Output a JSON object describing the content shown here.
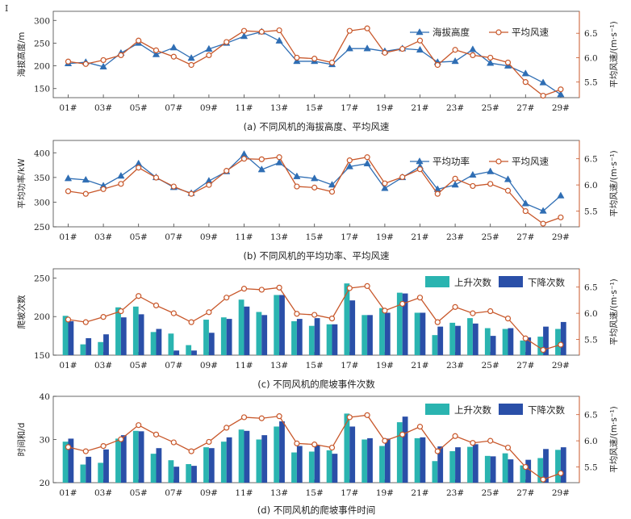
{
  "figure_label": "I",
  "colors": {
    "blue_line": "#2f6eb4",
    "orange_line": "#c8572a",
    "bar_up": "#2ab4b0",
    "bar_down": "#2a4fa8",
    "axis": "#444444",
    "right_axis": "#c8572a"
  },
  "x_tick_labels": [
    "01#",
    "03#",
    "05#",
    "07#",
    "09#",
    "11#",
    "13#",
    "15#",
    "17#",
    "19#",
    "21#",
    "23#",
    "25#",
    "27#",
    "29#"
  ],
  "chart_data": [
    {
      "type": "line",
      "caption": "(a) 不同风机的海拔高度、平均风速",
      "ylabel_left": "海拔高度/m",
      "ylabel_right": "平均风速/(m·s⁻¹)",
      "yticks_left": [
        "150",
        "200",
        "250",
        "300"
      ],
      "yticks_right": [
        "5.5",
        "6.0",
        "6.5"
      ],
      "ylim_left": [
        130,
        320
      ],
      "ylim_right": [
        5.18,
        6.95
      ],
      "x": [
        1,
        2,
        3,
        4,
        5,
        6,
        7,
        8,
        9,
        10,
        11,
        12,
        13,
        14,
        15,
        16,
        17,
        18,
        19,
        20,
        21,
        22,
        23,
        24,
        25,
        26,
        27,
        28,
        29
      ],
      "series": [
        {
          "name": "海拔高度",
          "axis": "left",
          "marker": "triangle",
          "values": [
            205,
            208,
            198,
            228,
            250,
            225,
            240,
            217,
            237,
            250,
            265,
            275,
            255,
            210,
            210,
            203,
            238,
            238,
            232,
            238,
            235,
            208,
            210,
            236,
            206,
            200,
            183,
            163,
            137
          ]
        },
        {
          "name": "平均风速",
          "axis": "right",
          "marker": "circle",
          "values": [
            5.92,
            5.87,
            5.95,
            6.05,
            6.35,
            6.15,
            6.02,
            5.85,
            6.05,
            6.32,
            6.55,
            6.53,
            6.56,
            6.0,
            5.98,
            5.9,
            6.55,
            6.6,
            6.1,
            6.18,
            6.35,
            5.85,
            6.16,
            6.05,
            6.0,
            5.9,
            5.5,
            5.22,
            5.35
          ]
        }
      ]
    },
    {
      "type": "line",
      "caption": "(b) 不同风机的平均功率、平均风速",
      "ylabel_left": "平均功率/kW",
      "ylabel_right": "平均风速/(m·s⁻¹)",
      "yticks_left": [
        "250",
        "300",
        "350",
        "400"
      ],
      "yticks_right": [
        "5.5",
        "6.0",
        "6.5"
      ],
      "ylim_left": [
        250,
        425
      ],
      "ylim_right": [
        5.2,
        6.85
      ],
      "x": [
        1,
        2,
        3,
        4,
        5,
        6,
        7,
        8,
        9,
        10,
        11,
        12,
        13,
        14,
        15,
        16,
        17,
        18,
        19,
        20,
        21,
        22,
        23,
        24,
        25,
        26,
        27,
        28,
        29
      ],
      "series": [
        {
          "name": "平均功率",
          "axis": "left",
          "marker": "triangle",
          "values": [
            348,
            345,
            333,
            353,
            378,
            350,
            330,
            318,
            343,
            362,
            397,
            366,
            380,
            352,
            348,
            335,
            372,
            378,
            328,
            350,
            372,
            326,
            335,
            355,
            362,
            346,
            297,
            282,
            313
          ]
        },
        {
          "name": "平均风速",
          "axis": "right",
          "marker": "circle",
          "values": [
            5.88,
            5.83,
            5.92,
            6.02,
            6.33,
            6.14,
            5.97,
            5.83,
            6.0,
            6.27,
            6.5,
            6.49,
            6.53,
            5.97,
            5.95,
            5.87,
            6.47,
            6.53,
            6.03,
            6.15,
            6.3,
            5.83,
            6.12,
            5.98,
            6.02,
            5.89,
            5.5,
            5.26,
            5.38
          ]
        }
      ]
    },
    {
      "type": "bar+line",
      "caption": "(c) 不同风机的爬坡事件次数",
      "ylabel_left": "爬坡次数",
      "ylabel_right": "平均风速/(m·s⁻¹)",
      "yticks_left": [
        "150",
        "200",
        "250"
      ],
      "yticks_right": [
        "5.5",
        "6.0",
        "6.5"
      ],
      "ylim_left": [
        150,
        262
      ],
      "ylim_right": [
        5.2,
        6.85
      ],
      "x": [
        1,
        2,
        3,
        4,
        5,
        6,
        7,
        8,
        9,
        10,
        11,
        12,
        13,
        14,
        15,
        16,
        17,
        18,
        19,
        20,
        21,
        22,
        23,
        24,
        25,
        26,
        27,
        28,
        29
      ],
      "series": [
        {
          "name": "上升次数",
          "kind": "bar",
          "values": [
            201,
            164,
            167,
            212,
            213,
            180,
            178,
            163,
            196,
            199,
            222,
            206,
            228,
            194,
            188,
            190,
            243,
            202,
            211,
            231,
            205,
            176,
            192,
            198,
            185,
            184,
            169,
            174,
            184
          ]
        },
        {
          "name": "下降次数",
          "kind": "bar",
          "values": [
            194,
            172,
            177,
            199,
            203,
            184,
            156,
            156,
            179,
            197,
            213,
            202,
            228,
            197,
            198,
            190,
            221,
            202,
            205,
            230,
            205,
            187,
            188,
            191,
            175,
            185,
            173,
            187,
            193
          ]
        },
        {
          "name": "平均风速",
          "kind": "line",
          "axis": "right",
          "values": [
            5.88,
            5.83,
            5.93,
            6.04,
            6.33,
            6.15,
            6.0,
            5.83,
            6.02,
            6.3,
            6.47,
            6.45,
            6.49,
            5.99,
            5.97,
            5.9,
            6.48,
            6.52,
            6.05,
            6.18,
            6.3,
            5.83,
            6.12,
            6.0,
            6.04,
            5.9,
            5.52,
            5.3,
            5.4
          ]
        }
      ]
    },
    {
      "type": "bar+line",
      "caption": "(d) 不同风机的爬坡事件时间",
      "ylabel_left": "时间和/d",
      "ylabel_right": "平均风速/(m·s⁻¹)",
      "yticks_left": [
        "20",
        "30",
        "40"
      ],
      "yticks_right": [
        "5.5",
        "6.0",
        "6.5"
      ],
      "ylim_left": [
        20,
        40
      ],
      "ylim_right": [
        5.2,
        6.85
      ],
      "x": [
        1,
        2,
        3,
        4,
        5,
        6,
        7,
        8,
        9,
        10,
        11,
        12,
        13,
        14,
        15,
        16,
        17,
        18,
        19,
        20,
        21,
        22,
        23,
        24,
        25,
        26,
        27,
        28,
        29
      ],
      "series": [
        {
          "name": "上升次数",
          "kind": "bar",
          "values": [
            29.5,
            24.2,
            24.6,
            30.2,
            32.0,
            26.7,
            25.2,
            24.3,
            28.2,
            29.5,
            32.3,
            30.0,
            33.0,
            27.0,
            27.2,
            27.5,
            36.0,
            30.0,
            28.5,
            34.0,
            30.3,
            25.0,
            27.3,
            28.3,
            26.2,
            26.8,
            24.0,
            25.7,
            27.6
          ]
        },
        {
          "name": "下降次数",
          "kind": "bar",
          "values": [
            30.2,
            26.0,
            27.7,
            31.0,
            31.9,
            28.0,
            23.7,
            23.9,
            28.0,
            30.5,
            32.0,
            31.0,
            34.2,
            28.5,
            28.6,
            26.7,
            33.0,
            30.3,
            30.2,
            35.3,
            30.5,
            28.4,
            28.2,
            28.9,
            26.1,
            25.4,
            25.3,
            27.8,
            28.2
          ]
        },
        {
          "name": "平均风速",
          "kind": "line",
          "axis": "right",
          "values": [
            5.88,
            5.8,
            5.9,
            6.03,
            6.3,
            6.12,
            5.97,
            5.8,
            5.98,
            6.25,
            6.45,
            6.43,
            6.47,
            5.95,
            5.93,
            5.87,
            6.45,
            6.49,
            6.0,
            6.12,
            6.27,
            5.8,
            6.09,
            5.96,
            6.0,
            5.87,
            5.5,
            5.26,
            5.38
          ]
        }
      ]
    }
  ]
}
